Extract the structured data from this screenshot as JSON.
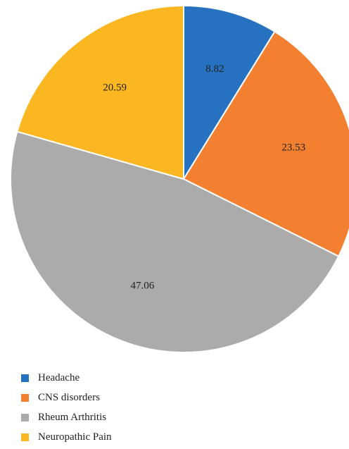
{
  "chart_data": {
    "type": "pie",
    "slices": [
      {
        "label": "Headache",
        "value": 8.82,
        "color": "#2672C1"
      },
      {
        "label": "CNS disorders",
        "value": 23.53,
        "color": "#F37F30"
      },
      {
        "label": "Rheum Arthritis",
        "value": 47.06,
        "color": "#ABABAB"
      },
      {
        "label": "Neuropathic Pain",
        "value": 20.59,
        "color": "#FBB722"
      }
    ],
    "start": "12 o'clock",
    "direction": "clockwise",
    "legend_position": "bottom-left"
  }
}
